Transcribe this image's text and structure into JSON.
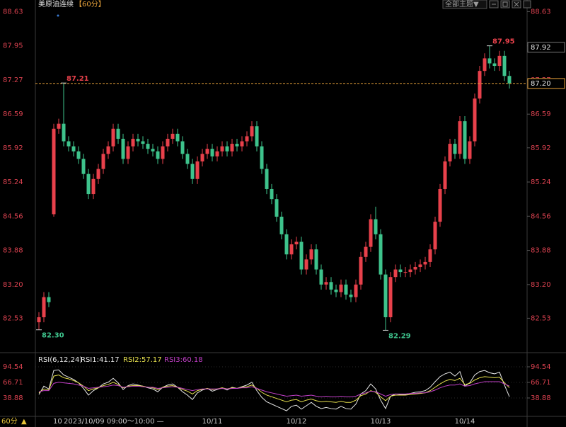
{
  "header": {
    "title": "美原油连续",
    "period": "【60分】",
    "theme_button": "全部主题▼"
  },
  "chart_data": [
    {
      "type": "candlestick",
      "up_color": "#e8414b",
      "down_color": "#3ec38c",
      "categories": [
        null,
        null,
        null,
        null,
        "10.",
        null,
        null,
        null,
        null,
        null,
        null,
        null,
        null,
        null,
        null,
        null,
        null,
        null,
        null,
        null,
        null,
        null,
        null,
        null,
        null,
        null,
        null,
        null,
        null,
        null,
        null,
        null,
        null,
        null,
        null,
        "10/11",
        null,
        null,
        null,
        null,
        null,
        null,
        null,
        null,
        null,
        null,
        null,
        null,
        null,
        null,
        null,
        null,
        "10/12",
        null,
        null,
        null,
        null,
        null,
        null,
        null,
        null,
        null,
        null,
        null,
        null,
        null,
        null,
        null,
        null,
        "10/13",
        null,
        null,
        null,
        null,
        null,
        null,
        null,
        null,
        null,
        null,
        null,
        null,
        null,
        null,
        null,
        null,
        "10/14",
        null,
        null,
        null,
        null,
        null,
        null,
        null,
        null,
        null
      ],
      "open": [
        82.45,
        82.55,
        82.95,
        84.6,
        86.3,
        86.4,
        86.05,
        85.95,
        85.85,
        85.7,
        85.4,
        85.0,
        85.3,
        85.5,
        85.8,
        85.95,
        86.3,
        86.1,
        85.7,
        85.95,
        86.1,
        86.05,
        86.0,
        85.9,
        85.85,
        85.7,
        85.95,
        86.1,
        86.2,
        86.05,
        85.8,
        85.6,
        85.3,
        85.65,
        85.8,
        85.9,
        85.75,
        85.85,
        85.95,
        85.85,
        86.0,
        85.95,
        86.05,
        86.15,
        86.35,
        85.95,
        85.5,
        85.1,
        84.9,
        84.55,
        84.2,
        83.8,
        84.0,
        84.05,
        83.5,
        83.7,
        83.9,
        83.5,
        83.2,
        83.25,
        83.1,
        83.05,
        83.2,
        83.0,
        82.95,
        83.2,
        83.75,
        83.95,
        84.5,
        84.2,
        83.4,
        82.55,
        83.35,
        83.5,
        83.45,
        83.45,
        83.5,
        83.55,
        83.6,
        83.65,
        83.9,
        84.45,
        85.1,
        85.65,
        86.0,
        85.8,
        86.45,
        85.7,
        86.05,
        86.9,
        87.45,
        87.7,
        87.6,
        87.55,
        87.75,
        87.35
      ],
      "high": [
        82.65,
        83.05,
        83.05,
        86.4,
        86.5,
        87.21,
        86.15,
        86.05,
        85.95,
        85.8,
        85.5,
        85.4,
        85.6,
        85.9,
        86.05,
        86.4,
        86.4,
        86.2,
        86.05,
        86.2,
        86.2,
        86.15,
        86.1,
        86.0,
        85.95,
        86.05,
        86.2,
        86.3,
        86.3,
        86.15,
        85.9,
        85.7,
        85.75,
        85.9,
        86.0,
        86.0,
        85.95,
        86.05,
        86.05,
        86.1,
        86.1,
        86.15,
        86.25,
        86.45,
        86.45,
        86.05,
        85.6,
        85.2,
        85.0,
        84.65,
        84.3,
        84.1,
        84.15,
        84.15,
        83.8,
        84.0,
        84.0,
        83.6,
        83.35,
        83.35,
        83.2,
        83.3,
        83.3,
        83.1,
        83.3,
        83.85,
        84.05,
        84.6,
        84.75,
        84.3,
        83.5,
        83.45,
        83.6,
        83.6,
        83.55,
        83.6,
        83.65,
        83.7,
        83.75,
        84.0,
        84.55,
        85.2,
        85.75,
        86.1,
        86.1,
        86.55,
        86.55,
        86.15,
        87.0,
        87.55,
        87.8,
        87.95,
        87.7,
        87.85,
        87.85,
        87.45
      ],
      "low": [
        82.3,
        82.45,
        82.75,
        84.55,
        86.2,
        85.95,
        85.85,
        85.75,
        85.6,
        85.3,
        84.9,
        84.9,
        85.2,
        85.4,
        85.7,
        85.85,
        86.0,
        85.6,
        85.6,
        85.85,
        85.95,
        85.9,
        85.8,
        85.75,
        85.6,
        85.6,
        85.85,
        86.0,
        85.95,
        85.7,
        85.5,
        85.2,
        85.2,
        85.55,
        85.7,
        85.65,
        85.65,
        85.75,
        85.75,
        85.75,
        85.85,
        85.85,
        85.95,
        86.05,
        85.85,
        85.4,
        85.0,
        84.8,
        84.45,
        84.1,
        83.7,
        83.7,
        83.9,
        83.4,
        83.4,
        83.6,
        83.4,
        83.1,
        83.1,
        83.0,
        82.95,
        82.95,
        82.9,
        82.85,
        82.85,
        83.1,
        83.65,
        83.85,
        84.1,
        83.3,
        82.29,
        82.45,
        83.25,
        83.35,
        83.35,
        83.35,
        83.4,
        83.45,
        83.5,
        83.55,
        83.8,
        84.35,
        85.0,
        85.55,
        85.7,
        85.7,
        85.6,
        85.6,
        85.95,
        86.8,
        87.35,
        87.5,
        87.45,
        87.45,
        87.25,
        87.1
      ],
      "close": [
        82.55,
        82.95,
        82.85,
        86.3,
        86.4,
        86.05,
        85.95,
        85.85,
        85.7,
        85.4,
        85.0,
        85.3,
        85.5,
        85.8,
        85.95,
        86.3,
        86.1,
        85.7,
        85.95,
        86.1,
        86.05,
        86.0,
        85.9,
        85.85,
        85.7,
        85.95,
        86.1,
        86.2,
        86.05,
        85.8,
        85.6,
        85.3,
        85.65,
        85.8,
        85.9,
        85.75,
        85.85,
        85.95,
        85.85,
        86.0,
        85.95,
        86.05,
        86.15,
        86.35,
        85.95,
        85.5,
        85.1,
        84.9,
        84.55,
        84.2,
        83.8,
        84.0,
        84.05,
        83.5,
        83.7,
        83.9,
        83.5,
        83.2,
        83.25,
        83.1,
        83.05,
        83.2,
        83.0,
        82.95,
        83.2,
        83.75,
        83.95,
        84.5,
        84.2,
        83.4,
        82.55,
        83.35,
        83.5,
        83.45,
        83.45,
        83.5,
        83.55,
        83.6,
        83.65,
        83.9,
        84.45,
        85.1,
        85.65,
        86.0,
        85.8,
        86.45,
        85.7,
        86.05,
        86.9,
        87.45,
        87.7,
        87.6,
        87.55,
        87.75,
        87.35,
        87.2
      ],
      "ylim": [
        81.93,
        88.72
      ],
      "yticks": [
        88.63,
        87.95,
        87.27,
        86.59,
        {
          "value": 85.92,
          "label": "85.92"
        },
        85.24,
        84.56,
        83.88,
        {
          "value": 83.2,
          "label": "83.20"
        },
        82.53
      ],
      "annotations": [
        87.21,
        {
          "value": 82.3,
          "label": "82.30"
        },
        82.29,
        87.95
      ],
      "price_boxes": [
        87.92,
        {
          "value": 87.2,
          "label": "87.20"
        }
      ],
      "last_line_color": "#e8a23a"
    },
    {
      "type": "line",
      "title": "RSI(6,12,24)",
      "ylim": [
        9.8,
        107.2
      ],
      "yticks": [
        94.54,
        66.71,
        38.88
      ],
      "series": [
        {
          "name": "RSI1:41.17",
          "color": "#e6e6e6",
          "values": [
            45,
            60,
            55,
            88,
            89,
            80,
            76,
            72,
            66,
            56,
            44,
            52,
            57,
            64,
            67,
            74,
            66,
            54,
            61,
            64,
            62,
            60,
            57,
            55,
            50,
            58,
            62,
            64,
            58,
            50,
            44,
            36,
            48,
            53,
            56,
            51,
            54,
            57,
            53,
            58,
            56,
            59,
            62,
            67,
            52,
            40,
            32,
            28,
            24,
            20,
            16,
            24,
            26,
            19,
            25,
            31,
            24,
            20,
            22,
            20,
            19,
            24,
            20,
            19,
            28,
            46,
            52,
            64,
            55,
            35,
            20,
            42,
            46,
            45,
            45,
            47,
            49,
            50,
            52,
            58,
            68,
            77,
            82,
            85,
            78,
            86,
            60,
            66,
            80,
            86,
            88,
            84,
            82,
            85,
            62,
            41.17
          ]
        },
        {
          "name": "RSI2:57.17",
          "color": "#e6e04e",
          "values": [
            48,
            55,
            53,
            78,
            80,
            75,
            73,
            70,
            66,
            60,
            52,
            55,
            57,
            61,
            63,
            67,
            63,
            57,
            60,
            61,
            61,
            60,
            58,
            57,
            54,
            58,
            60,
            61,
            58,
            54,
            51,
            46,
            52,
            54,
            56,
            54,
            55,
            57,
            55,
            57,
            56,
            58,
            59,
            62,
            56,
            49,
            44,
            41,
            38,
            35,
            32,
            35,
            36,
            32,
            35,
            37,
            34,
            32,
            33,
            32,
            31,
            33,
            31,
            31,
            35,
            43,
            46,
            52,
            49,
            41,
            34,
            42,
            44,
            44,
            44,
            45,
            46,
            47,
            48,
            52,
            58,
            64,
            69,
            72,
            70,
            74,
            63,
            65,
            71,
            75,
            77,
            76,
            75,
            76,
            66,
            57.17
          ]
        },
        {
          "name": "RSI3:60.18",
          "color": "#c23fc8",
          "values": [
            50,
            52,
            52,
            65,
            67,
            66,
            65,
            64,
            62,
            60,
            56,
            57,
            58,
            59,
            60,
            62,
            61,
            58,
            59,
            60,
            60,
            59,
            58,
            58,
            56,
            57,
            58,
            59,
            58,
            56,
            54,
            52,
            54,
            55,
            55,
            55,
            55,
            56,
            55,
            56,
            56,
            57,
            57,
            59,
            56,
            53,
            50,
            48,
            46,
            44,
            42,
            43,
            44,
            42,
            43,
            44,
            42,
            41,
            42,
            41,
            41,
            42,
            41,
            41,
            42,
            46,
            48,
            51,
            50,
            46,
            42,
            45,
            46,
            46,
            46,
            47,
            47,
            48,
            48,
            50,
            53,
            57,
            60,
            62,
            62,
            64,
            60,
            61,
            64,
            66,
            68,
            68,
            68,
            68,
            64,
            60.18
          ]
        }
      ]
    }
  ],
  "footer": {
    "period": "60分",
    "arrow": "▲",
    "tooltip": "2023/10/09 09:00～10:00 —"
  }
}
